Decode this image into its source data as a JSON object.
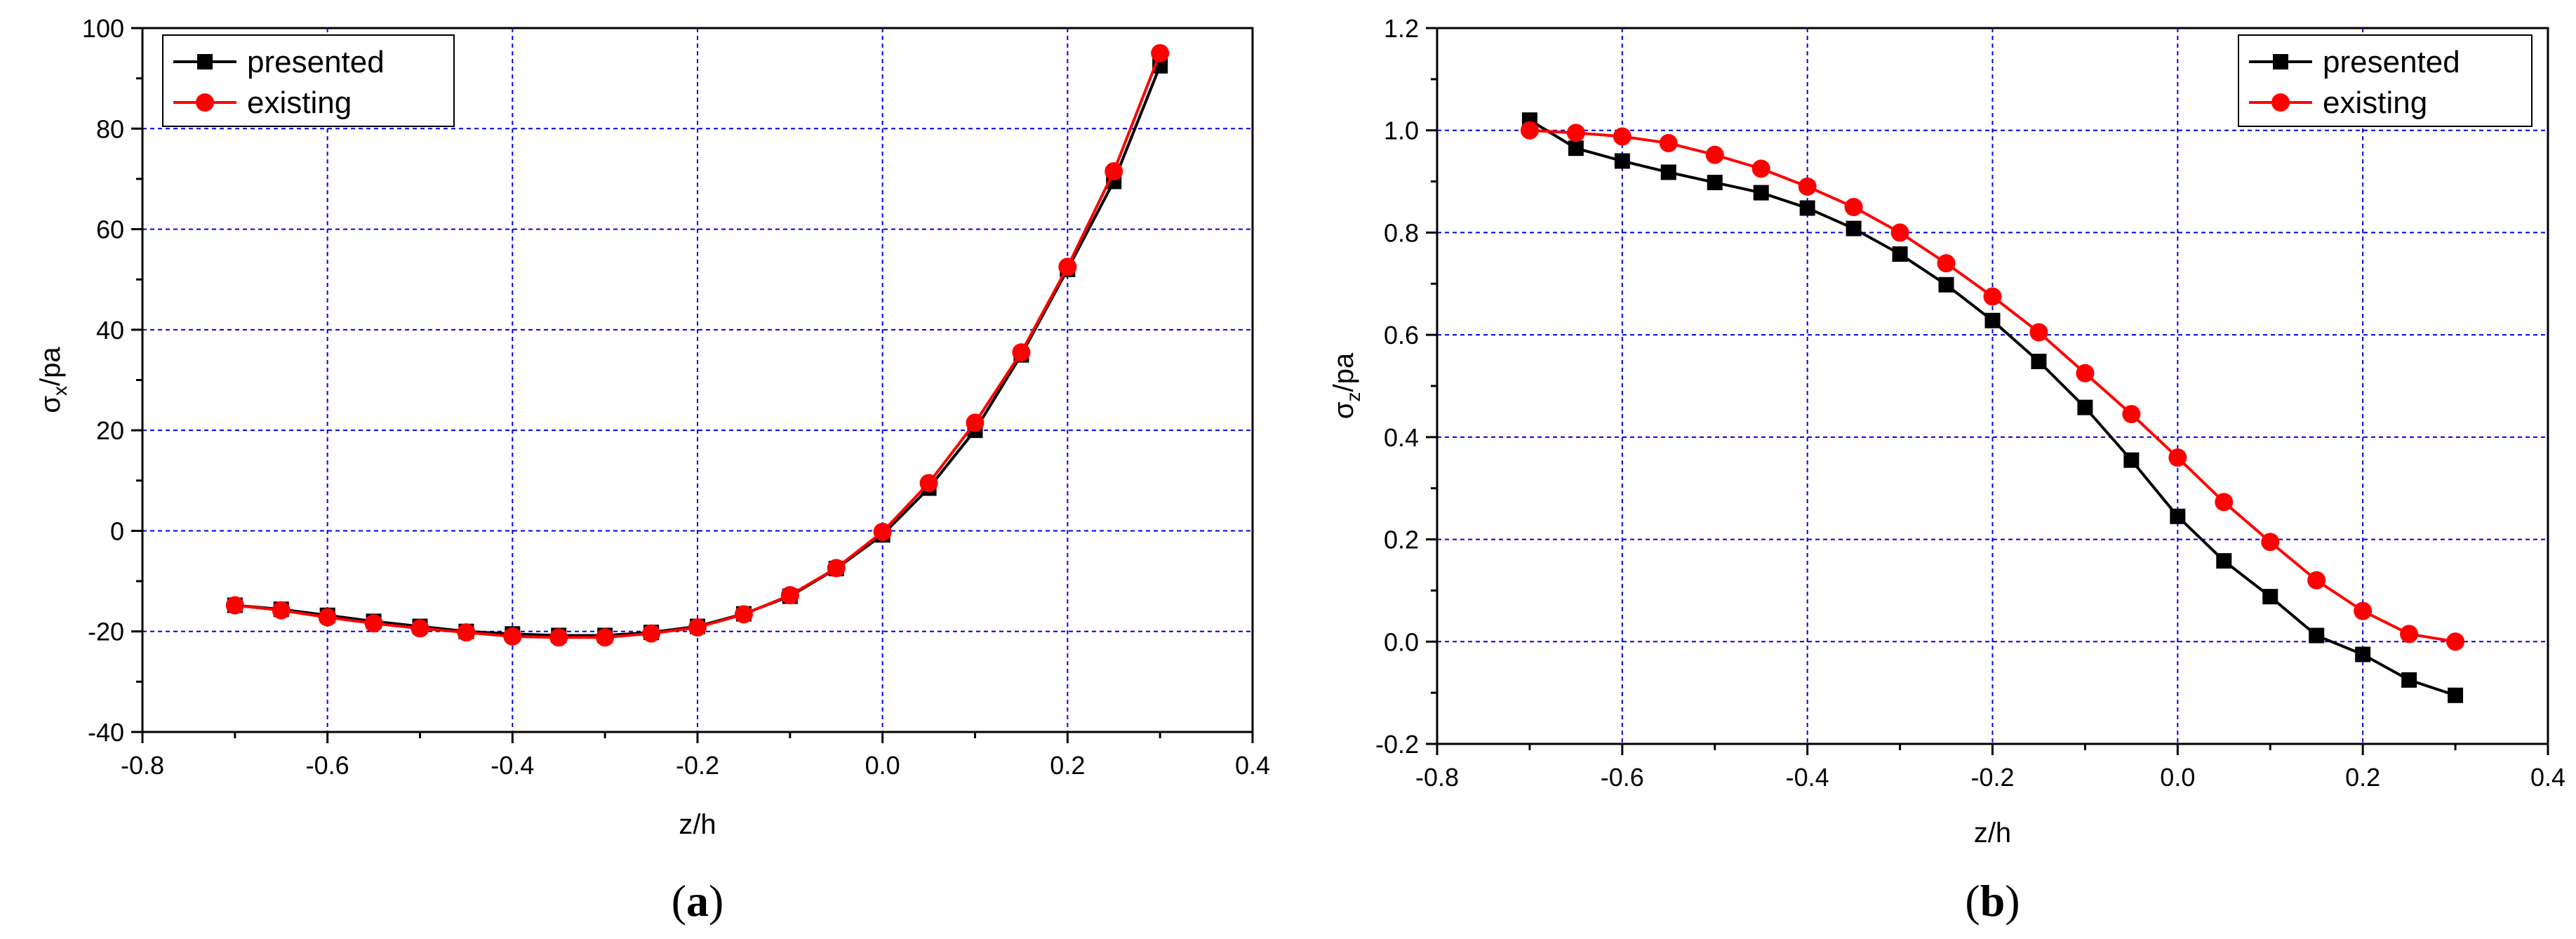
{
  "chart_data": [
    {
      "type": "line",
      "panel_label": "a",
      "xlabel": "z/h",
      "ylabel_main": "σ",
      "ylabel_sub": "x",
      "ylabel_suffix": "/pa",
      "xlim": [
        -0.8,
        0.4
      ],
      "ylim": [
        -40,
        100
      ],
      "xticks": [
        -0.8,
        -0.6,
        -0.4,
        -0.2,
        0.0,
        0.2,
        0.4
      ],
      "xtick_labels": [
        "-0.8",
        "-0.6",
        "-0.4",
        "-0.2",
        "0.0",
        "0.2",
        "0.4"
      ],
      "yticks": [
        -40,
        -20,
        0,
        20,
        40,
        60,
        80,
        100
      ],
      "ytick_labels": [
        "-40",
        "-20",
        "0",
        "20",
        "40",
        "60",
        "80",
        "100"
      ],
      "grid": true,
      "legend_position": "top-left",
      "x": [
        -0.7,
        -0.65,
        -0.6,
        -0.55,
        -0.5,
        -0.45,
        -0.4,
        -0.35,
        -0.3,
        -0.25,
        -0.2,
        -0.15,
        -0.1,
        -0.05,
        0.0,
        0.05,
        0.1,
        0.15,
        0.2,
        0.25,
        0.3
      ],
      "series": [
        {
          "name": "presented",
          "color": "#000000",
          "marker": "square",
          "values": [
            -14.8,
            -15.6,
            -16.8,
            -18.0,
            -19.0,
            -20.0,
            -20.5,
            -20.8,
            -20.8,
            -20.2,
            -19.0,
            -16.5,
            -13.0,
            -7.5,
            -0.8,
            8.5,
            20.0,
            35.0,
            52.0,
            69.5,
            92.5
          ]
        },
        {
          "name": "existing",
          "color": "#ff0000",
          "marker": "circle",
          "values": [
            -14.8,
            -15.8,
            -17.2,
            -18.4,
            -19.4,
            -20.2,
            -21.0,
            -21.2,
            -21.2,
            -20.4,
            -19.2,
            -16.6,
            -12.8,
            -7.4,
            -0.2,
            9.5,
            21.5,
            35.5,
            52.5,
            71.5,
            95.0
          ]
        }
      ]
    },
    {
      "type": "line",
      "panel_label": "b",
      "xlabel": "z/h",
      "ylabel_main": "σ",
      "ylabel_sub": "z",
      "ylabel_suffix": "/pa",
      "xlim": [
        -0.8,
        0.4
      ],
      "ylim": [
        -0.2,
        1.2
      ],
      "xticks": [
        -0.8,
        -0.6,
        -0.4,
        -0.2,
        0.0,
        0.2,
        0.4
      ],
      "xtick_labels": [
        "-0.8",
        "-0.6",
        "-0.4",
        "-0.2",
        "0.0",
        "0.2",
        "0.4"
      ],
      "yticks": [
        -0.2,
        0.0,
        0.2,
        0.4,
        0.6,
        0.8,
        1.0,
        1.2
      ],
      "ytick_labels": [
        "-0.2",
        "0.0",
        "0.2",
        "0.4",
        "0.6",
        "0.8",
        "1.0",
        "1.2"
      ],
      "grid": true,
      "legend_position": "top-right",
      "x": [
        -0.7,
        -0.65,
        -0.6,
        -0.55,
        -0.5,
        -0.45,
        -0.4,
        -0.35,
        -0.3,
        -0.25,
        -0.2,
        -0.15,
        -0.1,
        -0.05,
        0.0,
        0.05,
        0.1,
        0.15,
        0.2,
        0.25,
        0.3
      ],
      "series": [
        {
          "name": "presented",
          "color": "#000000",
          "marker": "square",
          "values": [
            1.02,
            0.965,
            0.94,
            0.918,
            0.898,
            0.878,
            0.848,
            0.808,
            0.758,
            0.698,
            0.628,
            0.548,
            0.458,
            0.355,
            0.245,
            0.158,
            0.088,
            0.012,
            -0.025,
            -0.075,
            -0.105
          ]
        },
        {
          "name": "existing",
          "color": "#ff0000",
          "marker": "circle",
          "values": [
            1.0,
            0.995,
            0.988,
            0.975,
            0.952,
            0.925,
            0.89,
            0.85,
            0.8,
            0.74,
            0.675,
            0.605,
            0.525,
            0.445,
            0.36,
            0.273,
            0.195,
            0.12,
            0.06,
            0.015,
            0.0
          ]
        }
      ]
    }
  ]
}
